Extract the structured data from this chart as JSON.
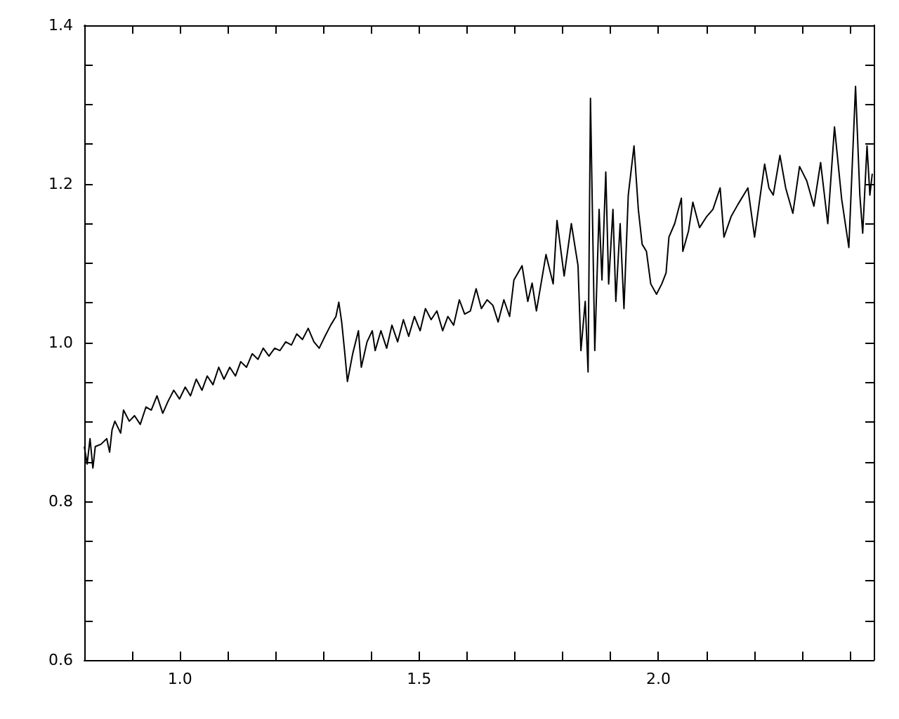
{
  "chart_data": {
    "type": "line",
    "grid": false,
    "marker": "none",
    "line_style": "solid",
    "xlim": [
      0.8,
      2.45
    ],
    "ylim": [
      0.6,
      1.4
    ],
    "xticks": [
      {
        "value": 0.9,
        "label": null
      },
      {
        "value": 1.0,
        "label": "1.0"
      },
      {
        "value": 1.1,
        "label": null
      },
      {
        "value": 1.2,
        "label": null
      },
      {
        "value": 1.3,
        "label": null
      },
      {
        "value": 1.4,
        "label": null
      },
      {
        "value": 1.5,
        "label": "1.5"
      },
      {
        "value": 1.6,
        "label": null
      },
      {
        "value": 1.7,
        "label": null
      },
      {
        "value": 1.8,
        "label": null
      },
      {
        "value": 1.9,
        "label": null
      },
      {
        "value": 2.0,
        "label": "2.0"
      },
      {
        "value": 2.1,
        "label": null
      },
      {
        "value": 2.2,
        "label": null
      },
      {
        "value": 2.3,
        "label": null
      },
      {
        "value": 2.4,
        "label": null
      }
    ],
    "yticks": [
      {
        "value": 0.6,
        "label": "0.6"
      },
      {
        "value": 0.65,
        "label": null
      },
      {
        "value": 0.7,
        "label": null
      },
      {
        "value": 0.75,
        "label": null
      },
      {
        "value": 0.8,
        "label": "0.8"
      },
      {
        "value": 0.85,
        "label": null
      },
      {
        "value": 0.9,
        "label": null
      },
      {
        "value": 0.95,
        "label": null
      },
      {
        "value": 1.0,
        "label": "1.0"
      },
      {
        "value": 1.05,
        "label": null
      },
      {
        "value": 1.1,
        "label": null
      },
      {
        "value": 1.15,
        "label": null
      },
      {
        "value": 1.2,
        "label": "1.2"
      },
      {
        "value": 1.25,
        "label": null
      },
      {
        "value": 1.3,
        "label": null
      },
      {
        "value": 1.35,
        "label": null
      },
      {
        "value": 1.4,
        "label": "1.4"
      }
    ],
    "series": [
      {
        "color": "#000000",
        "x": [
          0.8,
          0.806,
          0.812,
          0.818,
          0.823,
          0.835,
          0.847,
          0.853,
          0.858,
          0.864,
          0.876,
          0.882,
          0.894,
          0.905,
          0.917,
          0.929,
          0.94,
          0.952,
          0.964,
          0.975,
          0.987,
          0.999,
          1.011,
          1.022,
          1.034,
          1.046,
          1.057,
          1.069,
          1.081,
          1.092,
          1.104,
          1.116,
          1.127,
          1.139,
          1.151,
          1.163,
          1.174,
          1.186,
          1.198,
          1.209,
          1.221,
          1.233,
          1.244,
          1.256,
          1.268,
          1.28,
          1.291,
          1.303,
          1.315,
          1.326,
          1.332,
          1.338,
          1.344,
          1.35,
          1.361,
          1.373,
          1.379,
          1.391,
          1.402,
          1.408,
          1.42,
          1.432,
          1.443,
          1.455,
          1.467,
          1.478,
          1.49,
          1.502,
          1.513,
          1.525,
          1.537,
          1.549,
          1.56,
          1.572,
          1.584,
          1.595,
          1.607,
          1.619,
          1.63,
          1.642,
          1.654,
          1.665,
          1.677,
          1.689,
          1.698,
          1.715,
          1.727,
          1.736,
          1.745,
          1.765,
          1.78,
          1.788,
          1.803,
          1.818,
          1.832,
          1.838,
          1.847,
          1.853,
          1.858,
          1.867,
          1.876,
          1.882,
          1.89,
          1.896,
          1.905,
          1.911,
          1.92,
          1.928,
          1.937,
          1.949,
          1.958,
          1.966,
          1.975,
          1.984,
          1.996,
          2.007,
          2.016,
          2.022,
          2.034,
          2.048,
          2.051,
          2.063,
          2.072,
          2.086,
          2.101,
          2.114,
          2.129,
          2.137,
          2.152,
          2.166,
          2.187,
          2.201,
          2.213,
          2.222,
          2.231,
          2.24,
          2.254,
          2.266,
          2.281,
          2.295,
          2.31,
          2.325,
          2.339,
          2.354,
          2.368,
          2.383,
          2.398,
          2.412,
          2.421,
          2.427,
          2.436,
          2.442,
          2.447
        ],
        "values": [
          0.869,
          0.847,
          0.879,
          0.842,
          0.869,
          0.872,
          0.879,
          0.862,
          0.89,
          0.901,
          0.886,
          0.915,
          0.901,
          0.908,
          0.897,
          0.919,
          0.915,
          0.933,
          0.911,
          0.926,
          0.94,
          0.929,
          0.944,
          0.933,
          0.954,
          0.94,
          0.958,
          0.947,
          0.969,
          0.954,
          0.969,
          0.958,
          0.976,
          0.969,
          0.986,
          0.979,
          0.993,
          0.983,
          0.993,
          0.99,
          1.001,
          0.997,
          1.011,
          1.004,
          1.018,
          1.001,
          0.993,
          1.008,
          1.022,
          1.033,
          1.051,
          1.026,
          0.99,
          0.951,
          0.986,
          1.015,
          0.969,
          1.001,
          1.015,
          0.99,
          1.015,
          0.993,
          1.022,
          1.001,
          1.029,
          1.008,
          1.033,
          1.015,
          1.043,
          1.029,
          1.04,
          1.015,
          1.033,
          1.022,
          1.054,
          1.036,
          1.04,
          1.068,
          1.043,
          1.054,
          1.047,
          1.026,
          1.054,
          1.033,
          1.079,
          1.097,
          1.052,
          1.075,
          1.04,
          1.111,
          1.074,
          1.154,
          1.084,
          1.15,
          1.097,
          0.99,
          1.052,
          0.963,
          1.308,
          0.99,
          1.168,
          1.079,
          1.215,
          1.074,
          1.168,
          1.052,
          1.15,
          1.043,
          1.186,
          1.248,
          1.168,
          1.124,
          1.115,
          1.074,
          1.061,
          1.074,
          1.088,
          1.133,
          1.15,
          1.182,
          1.115,
          1.141,
          1.177,
          1.145,
          1.159,
          1.168,
          1.195,
          1.133,
          1.159,
          1.174,
          1.195,
          1.133,
          1.186,
          1.225,
          1.195,
          1.186,
          1.236,
          1.195,
          1.163,
          1.222,
          1.204,
          1.172,
          1.227,
          1.15,
          1.272,
          1.181,
          1.12,
          1.323,
          1.186,
          1.138,
          1.248,
          1.186,
          1.213
        ]
      }
    ]
  }
}
